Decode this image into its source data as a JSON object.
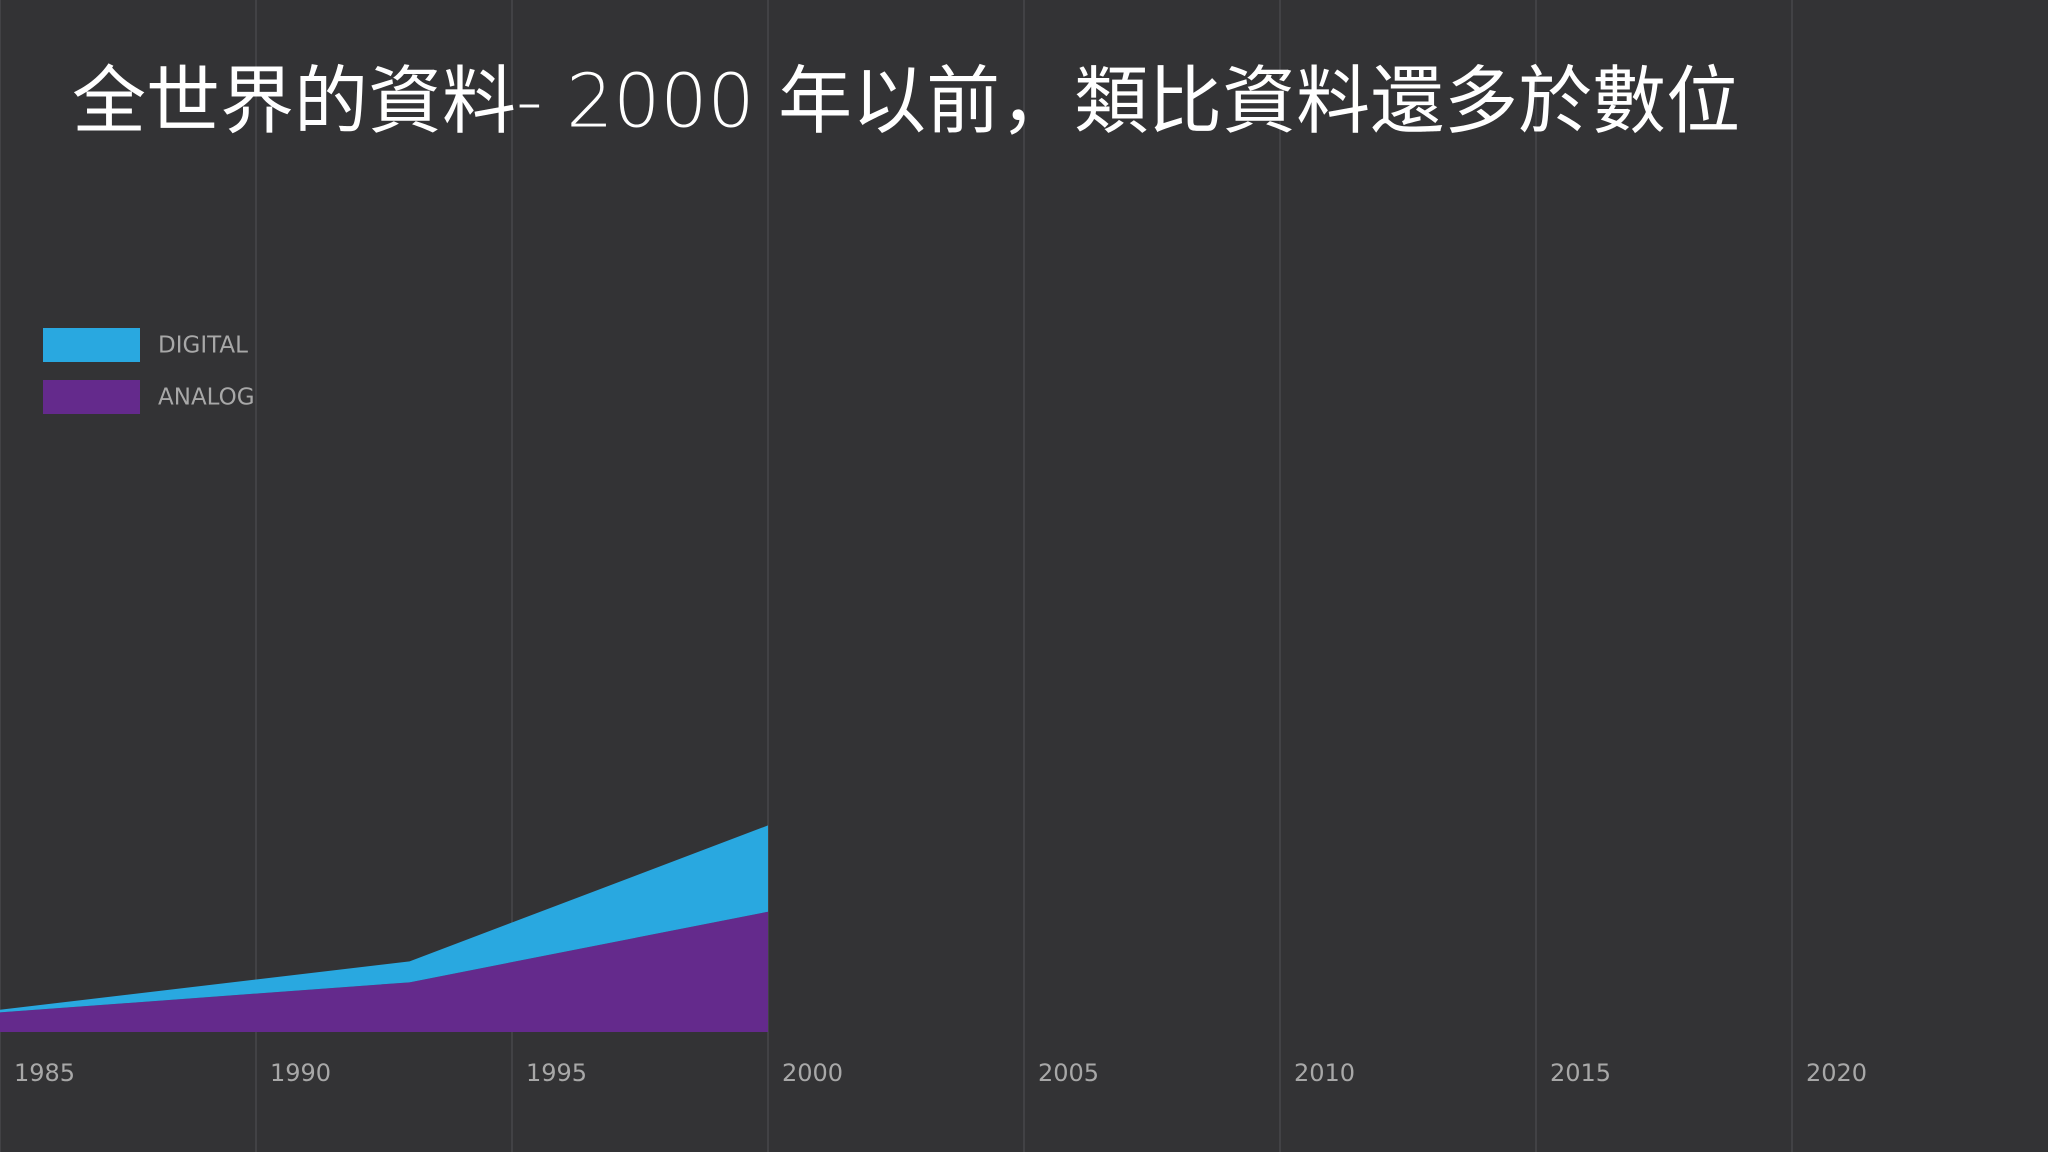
{
  "chart_data": {
    "type": "stacked_area",
    "title": "全世界的資料- 2000 年以前，類比資料還多於數位",
    "x": [
      1985,
      1993,
      2000
    ],
    "series": [
      {
        "name": "DIGITAL",
        "color": "#29a8e0",
        "values": [
          2,
          16,
          66
        ]
      },
      {
        "name": "ANALOG",
        "color": "#642a8c",
        "values": [
          15,
          38,
          92
        ]
      }
    ],
    "xlim": [
      1985,
      2025
    ],
    "xticks": [
      1985,
      1990,
      1995,
      2000,
      2005,
      2010,
      2015,
      2020
    ],
    "ylim": [
      0,
      400
    ],
    "grid": true,
    "legend": "top-left"
  }
}
